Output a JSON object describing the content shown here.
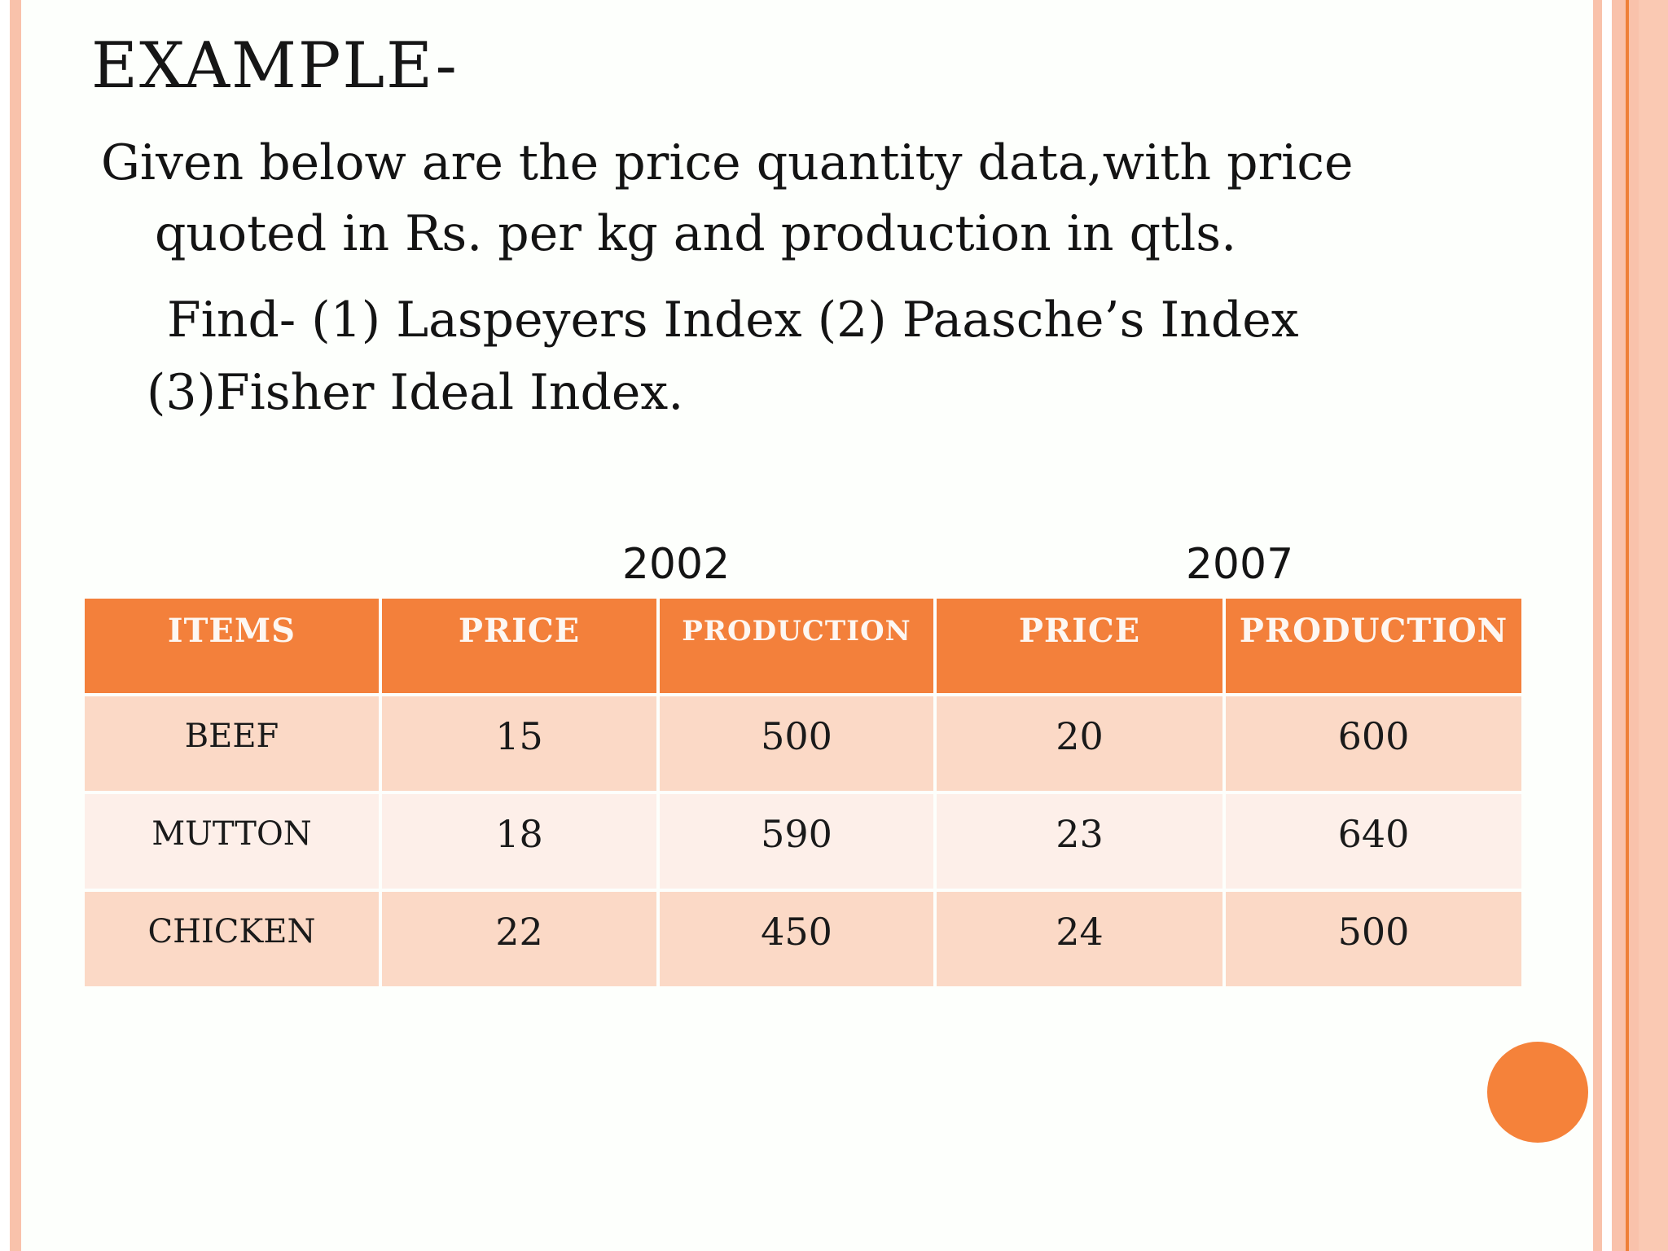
{
  "slide": {
    "title": "EXAMPLE-",
    "body_lines": [
      "Given below are the price quantity data,with price",
      "quoted in Rs. per kg and production in qtls.",
      "Find- (1) Laspeyers Index (2) Paasche’s Index",
      "(3)Fisher Ideal Index."
    ]
  },
  "table": {
    "years": [
      "2002",
      "2007"
    ],
    "headers": [
      "ITEMS",
      "PRICE",
      "PRODUCTION",
      "PRICE",
      "PRODUCTION"
    ],
    "rows": [
      {
        "item": "BEEF",
        "values": [
          "15",
          "500",
          "20",
          "600"
        ]
      },
      {
        "item": "MUTTON",
        "values": [
          "18",
          "590",
          "23",
          "640"
        ]
      },
      {
        "item": "CHICKEN",
        "values": [
          "22",
          "450",
          "24",
          "500"
        ]
      }
    ]
  },
  "colors": {
    "header_orange": "#F3803B",
    "row_peach_dark": "#FBD9C6",
    "row_peach_light": "#FDEFE9",
    "edge_salmon": "#F9C2AB",
    "edge_accent_line": "#EF8038",
    "circle_orange": "#F5823A",
    "text": "#141414",
    "background": "#FDFFFC"
  }
}
